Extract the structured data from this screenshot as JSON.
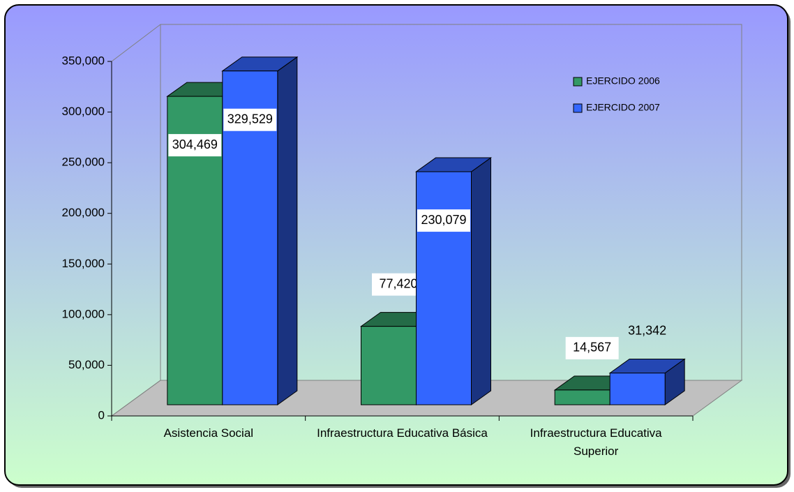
{
  "chart_data": {
    "type": "bar3d",
    "categories": [
      "Asistencia Social",
      "Infraestructura Educativa Básica",
      "Infraestructura Educativa Superior"
    ],
    "series": [
      {
        "name": "EJERCIDO 2006",
        "color": "#339966",
        "values": [
          304469,
          77420,
          14567
        ],
        "value_labels": [
          "304,469",
          "77,420",
          "14,567"
        ]
      },
      {
        "name": "EJERCIDO 2007",
        "color": "#3366ff",
        "values": [
          329529,
          230079,
          31342
        ],
        "value_labels": [
          "329,529",
          "230,079",
          "31,342"
        ]
      }
    ],
    "ylim": [
      0,
      350000
    ],
    "yticks": [
      0,
      {
        "value": 50000,
        "label": "50,000"
      },
      {
        "value": 100000,
        "label": "100,000"
      },
      {
        "value": 150000,
        "label": "150,000"
      },
      {
        "value": 200000,
        "label": "200,000"
      },
      {
        "value": 250000,
        "label": "250,000"
      },
      {
        "value": 300000,
        "label": "300,000"
      },
      {
        "value": 350000,
        "label": "350,000"
      }
    ],
    "legend": "upper right"
  }
}
